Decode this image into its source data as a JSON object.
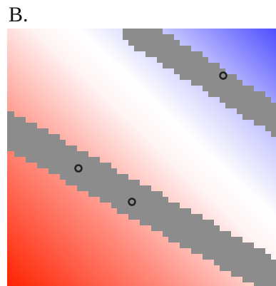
{
  "panel": {
    "label": "B."
  },
  "colors": {
    "background": "#ffffff",
    "positive": "#ff2200",
    "neutral": "#ffffff",
    "negative": "#4f4fff",
    "band": "#8c8c8c",
    "marker_stroke": "#222222"
  },
  "field": {
    "description_ignored": false,
    "direction": "diagonal",
    "high_corner": "top-right",
    "low_corner": "bottom-left"
  },
  "bands": [
    {
      "name": "upper-band",
      "markers": 1
    },
    {
      "name": "lower-band",
      "markers": 2
    }
  ]
}
